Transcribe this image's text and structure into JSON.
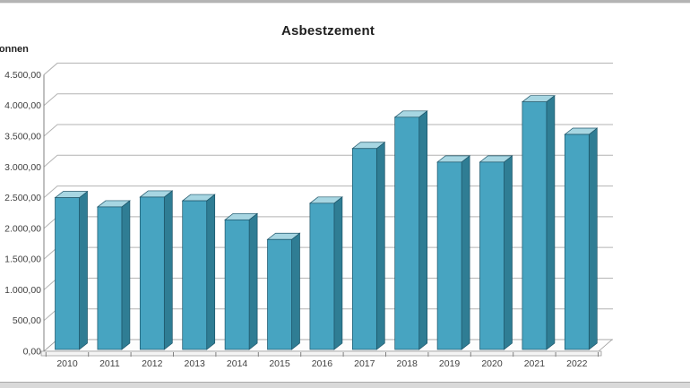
{
  "window": {
    "top_edge_color": "#b4b4b4",
    "bottom_edge_color": "#d9d9d9"
  },
  "chart_data": {
    "type": "bar",
    "style": "3d-column",
    "title": "Asbestzement",
    "ylabel": "Tonnen",
    "xlabel": "",
    "categories": [
      "2010",
      "2011",
      "2012",
      "2013",
      "2014",
      "2015",
      "2016",
      "2017",
      "2018",
      "2019",
      "2020",
      "2021",
      "2022"
    ],
    "values": [
      2470,
      2320,
      2480,
      2420,
      2110,
      1790,
      2380,
      3270,
      3780,
      3050,
      3050,
      4030,
      3500
    ],
    "ylim": [
      0,
      4500
    ],
    "ytick_step": 500,
    "ytick_labels": [
      "0,00",
      "500,00",
      "1.000,00",
      "1.500,00",
      "2.000,00",
      "2.500,00",
      "3.000,00",
      "3.500,00",
      "4.000,00",
      "4.500,00"
    ],
    "grid": true,
    "legend": "none",
    "colors": {
      "bar_front": "#47a4c1",
      "bar_side": "#2f7d94",
      "bar_top": "#a7d6e2",
      "bar_outline": "#1c5468",
      "gridline": "#b3b3b3",
      "axis": "#808080",
      "floor_fill": "#fdfdfd",
      "floor_edge": "#9a9a9a",
      "tick_text": "#3f3f3f"
    }
  }
}
